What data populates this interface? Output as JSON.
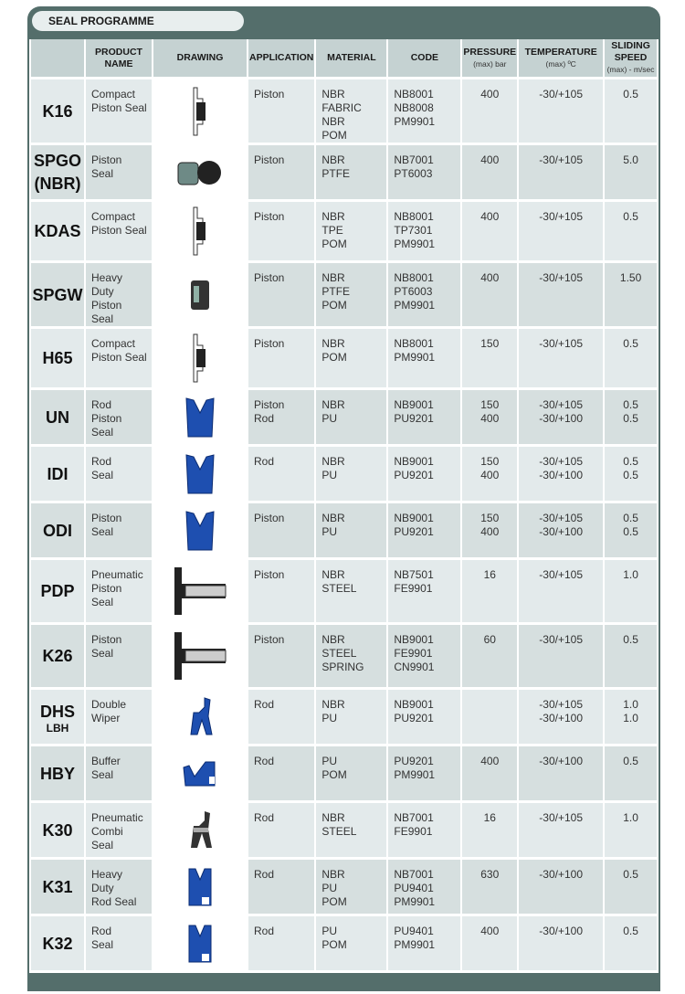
{
  "title": "SEAL PROGRAMME",
  "headers": {
    "product": "PRODUCT NAME",
    "drawing": "DRAWING",
    "application": "APPLICATION",
    "material": "MATERIAL",
    "code": "CODE",
    "pressure": "PRESSURE",
    "pressure_unit": "(max) bar",
    "temperature": "TEMPERATURE",
    "temperature_unit": "(max) ºC",
    "speed": "SLIDING SPEED",
    "speed_unit": "(max) - m/sec"
  },
  "rows": [
    {
      "id": "K16",
      "sub": "",
      "name": "Compact\nPiston Seal",
      "drawing": "piston-gray",
      "app": "Piston",
      "material": "NBR\nFABRIC NBR\nPOM",
      "code": "NB8001\nNB8008\nPM9901",
      "pressure": "400",
      "temp": "-30/+105",
      "speed": "0.5"
    },
    {
      "id": "SPGO",
      "sub": "(NBR)",
      "name": "Piston\nSeal",
      "drawing": "oring",
      "app": "Piston",
      "material": "NBR\nPTFE",
      "code": "NB7001\nPT6003",
      "pressure": "400",
      "temp": "-30/+105",
      "speed": "5.0"
    },
    {
      "id": "KDAS",
      "sub": "",
      "name": "Compact\nPiston Seal",
      "drawing": "piston-gray",
      "app": "Piston",
      "material": "NBR\nTPE\nPOM",
      "code": "NB8001\nTP7301\nPM9901",
      "pressure": "400",
      "temp": "-30/+105",
      "speed": "0.5"
    },
    {
      "id": "SPGW",
      "sub": "",
      "name": "Heavy\nDuty\nPiston\nSeal",
      "drawing": "block",
      "app": "Piston",
      "material": "NBR\nPTFE\nPOM",
      "code": "NB8001\nPT6003\nPM9901",
      "pressure": "400",
      "temp": "-30/+105",
      "speed": "1.50"
    },
    {
      "id": "H65",
      "sub": "",
      "name": "Compact\nPiston Seal",
      "drawing": "piston-gray",
      "app": "Piston",
      "material": "NBR\nPOM",
      "code": "NB8001\nPM9901",
      "pressure": "150",
      "temp": "-30/+105",
      "speed": "0.5"
    },
    {
      "id": "UN",
      "sub": "",
      "name": "Rod\nPiston\nSeal",
      "drawing": "u-blue",
      "app": "Piston\nRod",
      "material": "NBR\nPU",
      "code": "NB9001\nPU9201",
      "pressure": "150\n400",
      "temp": "-30/+105\n-30/+100",
      "speed": "0.5\n0.5"
    },
    {
      "id": "IDI",
      "sub": "",
      "name": "Rod\nSeal",
      "drawing": "u-blue",
      "app": "Rod",
      "material": "NBR\nPU",
      "code": "NB9001\nPU9201",
      "pressure": "150\n400",
      "temp": "-30/+105\n-30/+100",
      "speed": "0.5\n0.5"
    },
    {
      "id": "ODI",
      "sub": "",
      "name": "Piston\nSeal",
      "drawing": "u-blue",
      "app": "Piston",
      "material": "NBR\nPU",
      "code": "NB9001\nPU9201",
      "pressure": "150\n400",
      "temp": "-30/+105\n-30/+100",
      "speed": "0.5\n0.5"
    },
    {
      "id": "PDP",
      "sub": "",
      "name": "Pneumatic\nPiston\nSeal",
      "drawing": "pneumatic",
      "app": "Piston",
      "material": "NBR\nSTEEL",
      "code": "NB7501\nFE9901",
      "pressure": "16",
      "temp": "-30/+105",
      "speed": "1.0"
    },
    {
      "id": "K26",
      "sub": "",
      "name": "Piston\nSeal",
      "drawing": "pneumatic",
      "app": "Piston",
      "material": "NBR\nSTEEL\nSPRING",
      "code": "NB9001\nFE9901\nCN9901",
      "pressure": "60",
      "temp": "-30/+105",
      "speed": "0.5"
    },
    {
      "id": "DHS",
      "sub": "LBH",
      "name": "Double\nWiper",
      "drawing": "wiper-blue",
      "app": "Rod",
      "material": "NBR\nPU",
      "code": "NB9001\nPU9201",
      "pressure": "",
      "temp": "-30/+105\n-30/+100",
      "speed": "1.0\n1.0"
    },
    {
      "id": "HBY",
      "sub": "",
      "name": "Buffer\nSeal",
      "drawing": "buffer-blue",
      "app": "Rod",
      "material": "PU\nPOM",
      "code": "PU9201\nPM9901",
      "pressure": "400",
      "temp": "-30/+100",
      "speed": "0.5"
    },
    {
      "id": "K30",
      "sub": "",
      "name": "Pneumatic\nCombi\nSeal",
      "drawing": "wiper-black",
      "app": "Rod",
      "material": "NBR\nSTEEL",
      "code": "NB7001\nFE9901",
      "pressure": "16",
      "temp": "-30/+105",
      "speed": "1.0"
    },
    {
      "id": "K31",
      "sub": "",
      "name": "Heavy\nDuty\nRod Seal",
      "drawing": "v-blue",
      "app": "Rod",
      "material": "NBR\nPU\nPOM",
      "code": "NB7001\nPU9401\nPM9901",
      "pressure": "630",
      "temp": "-30/+100",
      "speed": "0.5"
    },
    {
      "id": "K32",
      "sub": "",
      "name": "Rod\nSeal",
      "drawing": "v-blue",
      "app": "Rod",
      "material": "PU\nPOM",
      "code": "PU9401\nPM9901",
      "pressure": "400",
      "temp": "-30/+100",
      "speed": "0.5"
    }
  ]
}
